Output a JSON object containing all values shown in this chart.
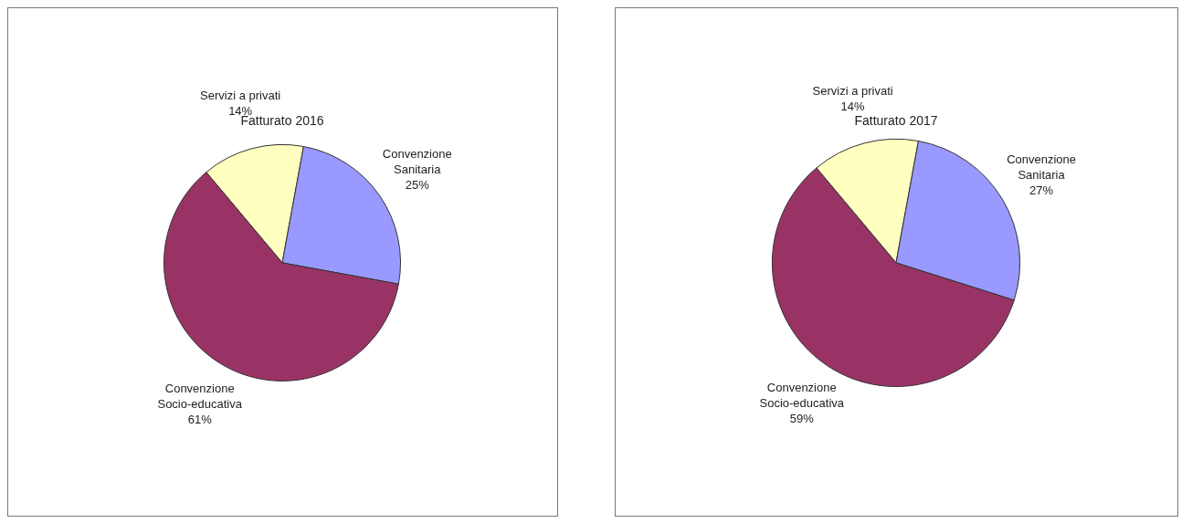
{
  "chart_data": [
    {
      "type": "pie",
      "title": "Fatturato 2016",
      "categories": [
        "Servizi a privati",
        "Convenzione Sanitaria",
        "Convenzione Socio-educativa"
      ],
      "values": [
        14,
        25,
        61
      ],
      "value_labels": [
        "14%",
        "25%",
        "61%"
      ],
      "colors": [
        "#ffffc0",
        "#9999ff",
        "#993366"
      ],
      "legend": false
    },
    {
      "type": "pie",
      "title": "Fatturato 2017",
      "categories": [
        "Servizi a privati",
        "Convenzione Sanitaria",
        "Convenzione Socio-educativa"
      ],
      "values": [
        14,
        27,
        59
      ],
      "value_labels": [
        "14%",
        "27%",
        "59%"
      ],
      "colors": [
        "#ffffc0",
        "#9999ff",
        "#993366"
      ],
      "legend": false
    }
  ]
}
